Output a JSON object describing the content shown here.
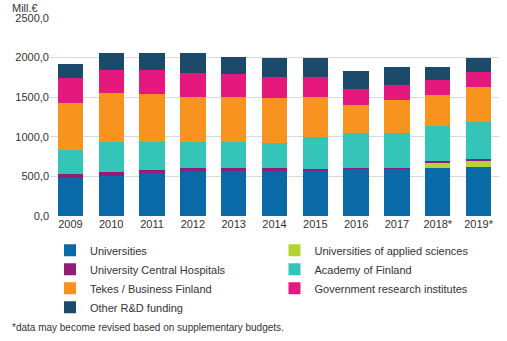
{
  "chart_data": {
    "type": "bar",
    "stacked": true,
    "ylabel": "Mill.€",
    "note": "*data may become revised based on supplementary budgets.",
    "categories": [
      "2009",
      "2010",
      "2011",
      "2012",
      "2013",
      "2014",
      "2015",
      "2016",
      "2017",
      "2018*",
      "2019*"
    ],
    "series": [
      {
        "name": "Universities",
        "color": "#0a6aa8",
        "values": [
          480,
          510,
          540,
          570,
          570,
          570,
          570,
          590,
          590,
          610,
          620
        ]
      },
      {
        "name": "Universities of applied sciences",
        "color": "#b5d334",
        "values": [
          0,
          0,
          0,
          0,
          0,
          0,
          0,
          0,
          0,
          65,
          70
        ]
      },
      {
        "name": "University Central Hospitals",
        "color": "#8e1e78",
        "values": [
          50,
          50,
          45,
          40,
          30,
          30,
          25,
          20,
          20,
          25,
          30
        ]
      },
      {
        "name": "Academy of Finland",
        "color": "#35c4b8",
        "values": [
          305,
          380,
          355,
          330,
          340,
          320,
          405,
          440,
          440,
          440,
          470
        ]
      },
      {
        "name": "Tekes / Business Finland",
        "color": "#f7931e",
        "values": [
          595,
          610,
          605,
          560,
          560,
          570,
          500,
          350,
          410,
          390,
          440
        ]
      },
      {
        "name": "Government research institutes",
        "color": "#e5197d",
        "values": [
          310,
          290,
          295,
          300,
          290,
          270,
          250,
          200,
          200,
          190,
          190
        ]
      },
      {
        "name": "Other R&D funding",
        "color": "#1c4a6b",
        "values": [
          180,
          220,
          220,
          260,
          220,
          240,
          250,
          230,
          220,
          160,
          170
        ]
      }
    ],
    "ylim": [
      0,
      2500
    ],
    "yticks": [
      {
        "value": 0,
        "label": "0,0"
      },
      {
        "value": 500,
        "label": "500,0"
      },
      {
        "value": 1000,
        "label": "1000,0"
      },
      {
        "value": 1500,
        "label": "1500,0"
      },
      {
        "value": 2000,
        "label": "2000,0"
      },
      {
        "value": 2500,
        "label": "2500,0"
      }
    ],
    "grid": true,
    "legend": "bottom"
  }
}
